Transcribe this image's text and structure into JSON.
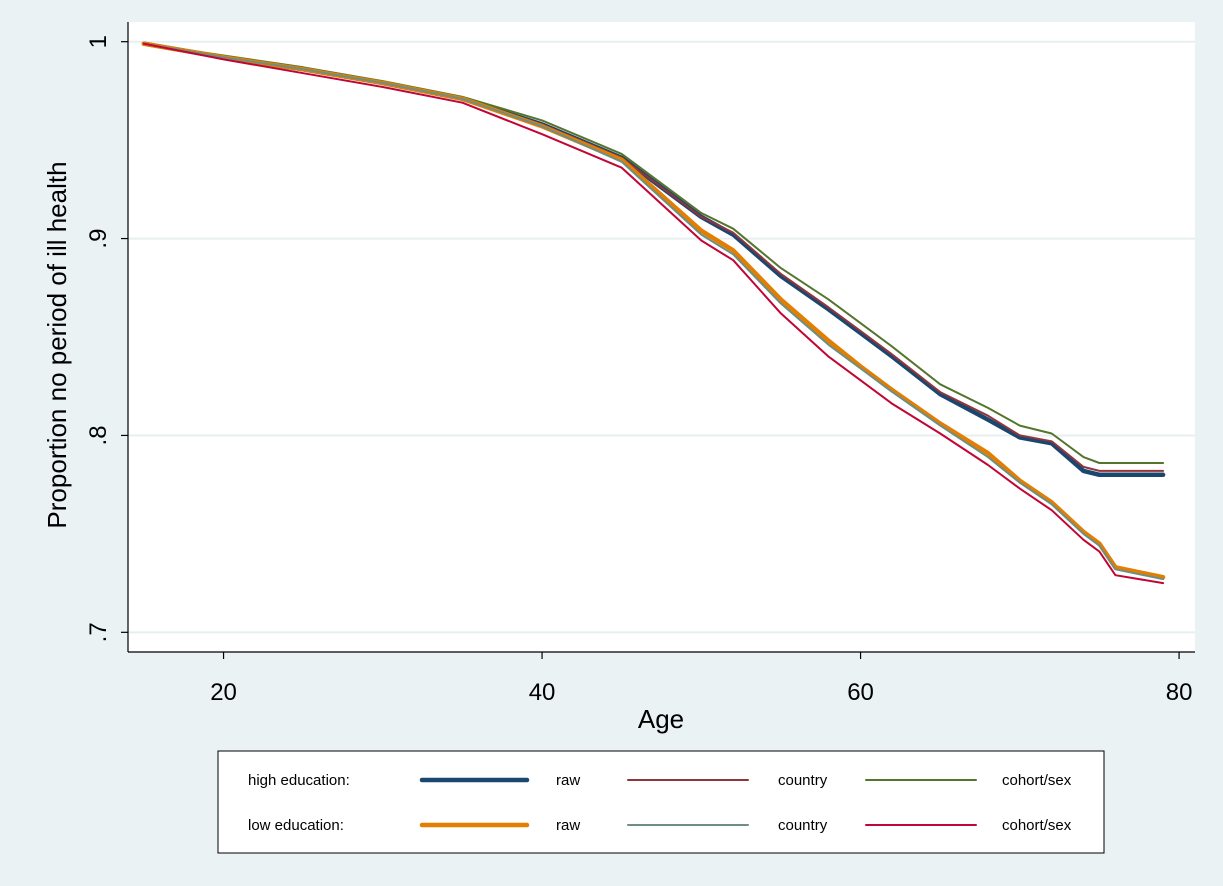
{
  "chart_data": {
    "type": "line",
    "xlabel": "Age",
    "ylabel": "Proportion no period of ill health",
    "xlim": [
      14,
      81
    ],
    "ylim": [
      0.69,
      1.01
    ],
    "xticks": [
      20,
      40,
      60,
      80
    ],
    "xtick_labels": [
      "20",
      "40",
      "60",
      "80"
    ],
    "yticks": [
      0.7,
      0.8,
      0.9,
      1.0
    ],
    "ytick_labels": [
      ".7",
      ".8",
      ".9",
      "1"
    ],
    "grid": true,
    "legend_position": "bottom",
    "legend": {
      "group_labels": [
        "high education:",
        "low education:"
      ],
      "columns": [
        "raw",
        "country",
        "cohort/sex"
      ]
    },
    "series": [
      {
        "name": "raw",
        "group": "high education:",
        "color": "#1a476f",
        "width": 4.5,
        "x": [
          15,
          20,
          25,
          30,
          35,
          40,
          45,
          50,
          52,
          55,
          58,
          60,
          62,
          65,
          68,
          70,
          72,
          74,
          75,
          79
        ],
        "y": [
          0.999,
          0.992,
          0.986,
          0.979,
          0.971,
          0.958,
          0.941,
          0.911,
          0.902,
          0.881,
          0.864,
          0.852,
          0.84,
          0.821,
          0.808,
          0.799,
          0.796,
          0.782,
          0.78,
          0.78
        ]
      },
      {
        "name": "country",
        "group": "high education:",
        "color": "#90353b",
        "width": 2,
        "x": [
          15,
          20,
          25,
          30,
          35,
          40,
          45,
          50,
          52,
          55,
          58,
          60,
          62,
          65,
          68,
          70,
          72,
          74,
          75,
          79
        ],
        "y": [
          0.999,
          0.992,
          0.986,
          0.979,
          0.971,
          0.958,
          0.941,
          0.911,
          0.903,
          0.882,
          0.865,
          0.853,
          0.841,
          0.822,
          0.81,
          0.8,
          0.797,
          0.784,
          0.782,
          0.782
        ]
      },
      {
        "name": "cohort/sex",
        "group": "high education:",
        "color": "#55752f",
        "width": 2,
        "x": [
          15,
          20,
          25,
          30,
          35,
          40,
          45,
          50,
          52,
          55,
          58,
          60,
          62,
          65,
          68,
          70,
          72,
          74,
          75,
          79
        ],
        "y": [
          0.999,
          0.993,
          0.987,
          0.98,
          0.972,
          0.96,
          0.943,
          0.913,
          0.905,
          0.885,
          0.869,
          0.857,
          0.845,
          0.826,
          0.814,
          0.805,
          0.801,
          0.789,
          0.786,
          0.786
        ]
      },
      {
        "name": "raw",
        "group": "low education:",
        "color": "#e37e00",
        "width": 4.5,
        "x": [
          15,
          20,
          25,
          30,
          35,
          40,
          45,
          50,
          52,
          55,
          58,
          60,
          62,
          65,
          68,
          70,
          72,
          74,
          75,
          76,
          79
        ],
        "y": [
          0.999,
          0.992,
          0.986,
          0.979,
          0.971,
          0.957,
          0.94,
          0.904,
          0.894,
          0.869,
          0.848,
          0.835,
          0.823,
          0.806,
          0.791,
          0.777,
          0.766,
          0.751,
          0.745,
          0.733,
          0.728
        ]
      },
      {
        "name": "country",
        "group": "low education:",
        "color": "#6e8e84",
        "width": 2,
        "x": [
          15,
          20,
          25,
          30,
          35,
          40,
          45,
          50,
          52,
          55,
          58,
          60,
          62,
          65,
          68,
          70,
          72,
          74,
          75,
          76,
          79
        ],
        "y": [
          0.999,
          0.992,
          0.986,
          0.979,
          0.971,
          0.957,
          0.939,
          0.902,
          0.892,
          0.867,
          0.846,
          0.834,
          0.822,
          0.805,
          0.789,
          0.776,
          0.765,
          0.75,
          0.744,
          0.732,
          0.727
        ]
      },
      {
        "name": "cohort/sex",
        "group": "low education:",
        "color": "#c10534",
        "width": 2,
        "x": [
          15,
          20,
          25,
          30,
          35,
          40,
          45,
          50,
          52,
          55,
          58,
          60,
          62,
          65,
          68,
          70,
          72,
          74,
          75,
          76,
          79
        ],
        "y": [
          0.999,
          0.991,
          0.984,
          0.977,
          0.969,
          0.953,
          0.936,
          0.899,
          0.889,
          0.862,
          0.84,
          0.828,
          0.816,
          0.801,
          0.785,
          0.773,
          0.762,
          0.747,
          0.741,
          0.729,
          0.725
        ]
      }
    ]
  }
}
